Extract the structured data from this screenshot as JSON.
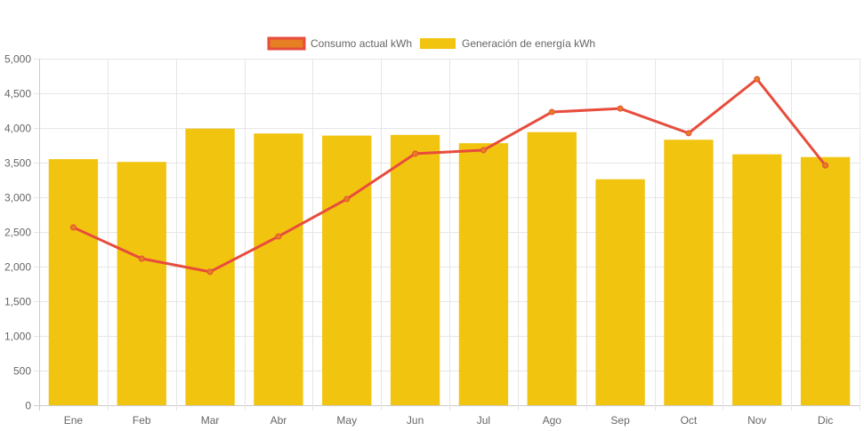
{
  "chart_data": {
    "type": "bar",
    "title": "",
    "xlabel": "",
    "ylabel": "",
    "categories": [
      "Ene",
      "Feb",
      "Mar",
      "Abr",
      "May",
      "Jun",
      "Jul",
      "Ago",
      "Sep",
      "Oct",
      "Nov",
      "Dic"
    ],
    "ylim": [
      0,
      5000
    ],
    "yticks": [
      0,
      500,
      1000,
      1500,
      2000,
      2500,
      3000,
      3500,
      4000,
      4500,
      5000
    ],
    "ytick_labels": [
      "0",
      "500",
      "1,000",
      "1,500",
      "2,000",
      "2,500",
      "3,000",
      "3,500",
      "4,000",
      "4,500",
      "5,000"
    ],
    "grid": true,
    "legend_position": "top-center",
    "series": [
      {
        "name": "Consumo actual kWh",
        "type": "line",
        "color": "#e74c3c",
        "point_color": "#e67e22",
        "values": [
          2565,
          2115,
          1925,
          2435,
          2975,
          3630,
          3680,
          4230,
          4280,
          3925,
          4705,
          3460
        ]
      },
      {
        "name": "Generación de energía kWh",
        "type": "bar",
        "color": "#f1c40f",
        "values": [
          3550,
          3510,
          3990,
          3920,
          3890,
          3900,
          3780,
          3940,
          3260,
          3830,
          3620,
          3580
        ]
      }
    ]
  }
}
